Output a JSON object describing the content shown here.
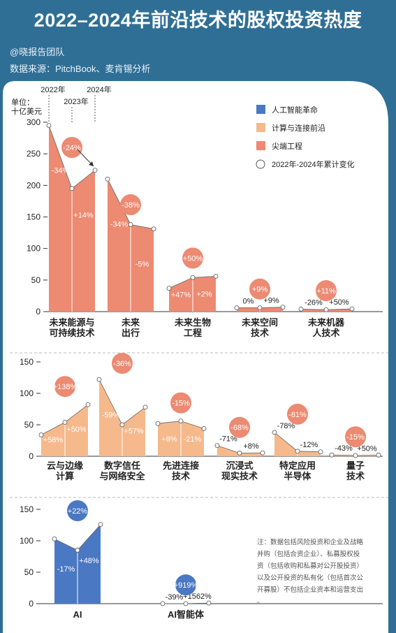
{
  "title": "2022–2024年前沿技术的股权投资热度",
  "author": "@晓报告团队",
  "source": "数据来源：PitchBook、麦肯锡分析",
  "legend": [
    {
      "label": "人工智能革命",
      "color": "#4a78c2",
      "kind": "square"
    },
    {
      "label": "计算与连接前沿",
      "color": "#f5b98c",
      "kind": "square"
    },
    {
      "label": "尖端工程",
      "color": "#ec8a72",
      "kind": "square"
    },
    {
      "label": "2022年-2024年累计变化",
      "color": "#ffffff",
      "kind": "circle"
    }
  ],
  "note": "注：数据包括风险投资和企业及战略并购（包括合资企业）、私募股权投资（包括收购和私募对公开股投资）以及公开投资的私有化（包括首次公开募股）不包括企业资本和运营支出。",
  "chart_data": [
    {
      "type": "area",
      "group": "尖端工程",
      "unit_label": [
        "单位：",
        "十亿美元"
      ],
      "year_labels": [
        "2022年",
        "2023年",
        "2024年"
      ],
      "ylim": [
        0,
        300
      ],
      "yticks": [
        "0",
        "50",
        "100",
        "150",
        "200",
        "250",
        "300"
      ],
      "color": "#ec8a72",
      "categories": [
        {
          "label": [
            "未来能源与",
            "可持续技术"
          ],
          "values": [
            295,
            195,
            224
          ],
          "changes": [
            "-34%",
            "+14%"
          ],
          "total": "-24%"
        },
        {
          "label": [
            "未来",
            "出行"
          ],
          "values": [
            210,
            138,
            131
          ],
          "changes": [
            "-34%",
            "-5%"
          ],
          "total": "-38%"
        },
        {
          "label": [
            "未来生物",
            "工程"
          ],
          "values": [
            37,
            54,
            56
          ],
          "changes": [
            "+47%",
            "+2%"
          ],
          "total": "+50%"
        },
        {
          "label": [
            "未来空间",
            "技术"
          ],
          "values": [
            6,
            6,
            7
          ],
          "changes": [
            "0%",
            "+9%"
          ],
          "total": "+9%"
        },
        {
          "label": [
            "未来机器",
            "人技术"
          ],
          "values": [
            4,
            3,
            4.4
          ],
          "changes": [
            "-26%",
            "+50%"
          ],
          "total": "+11%"
        }
      ]
    },
    {
      "type": "area",
      "group": "计算与连接前沿",
      "ylim": [
        0,
        150
      ],
      "yticks": [
        "0",
        "50",
        "100",
        "150"
      ],
      "color": "#f5b98c",
      "categories": [
        {
          "label": [
            "云与边缘",
            "计算"
          ],
          "values": [
            34,
            54,
            82
          ],
          "changes": [
            "+58%",
            "+50%"
          ],
          "total": "+138%"
        },
        {
          "label": [
            "数字信任",
            "与网络安全"
          ],
          "values": [
            122,
            50,
            78
          ],
          "changes": [
            "-59%",
            "+57%"
          ],
          "total": "-36%"
        },
        {
          "label": [
            "先进连接",
            "技术"
          ],
          "values": [
            52,
            56,
            44
          ],
          "changes": [
            "+8%",
            "-21%"
          ],
          "total": "-15%"
        },
        {
          "label": [
            "沉浸式",
            "现实技术"
          ],
          "values": [
            17,
            5,
            5.4
          ],
          "changes": [
            "-71%",
            "+8%"
          ],
          "total": "-68%"
        },
        {
          "label": [
            "特定应用",
            "半导体"
          ],
          "values": [
            38,
            8,
            7
          ],
          "changes": [
            "-78%",
            "-12%"
          ],
          "total": "-81%"
        },
        {
          "label": [
            "量子",
            "技术"
          ],
          "values": [
            2,
            1.2,
            1.8
          ],
          "changes": [
            "-43%",
            "+50%"
          ],
          "total": "-15%"
        }
      ]
    },
    {
      "type": "area",
      "group": "人工智能革命",
      "ylim": [
        0,
        150
      ],
      "yticks": [
        "0",
        "50",
        "100",
        "150"
      ],
      "color": "#4a78c2",
      "categories": [
        {
          "label": [
            "AI"
          ],
          "values": [
            103,
            85,
            126
          ],
          "changes": [
            "-17%",
            "+48%"
          ],
          "total": "+22%"
        },
        {
          "label": [
            "AI智能体"
          ],
          "values": [
            0.1,
            0.1,
            1
          ],
          "changes": [
            "-39%",
            "+1562%"
          ],
          "total": "+919%"
        }
      ]
    }
  ]
}
